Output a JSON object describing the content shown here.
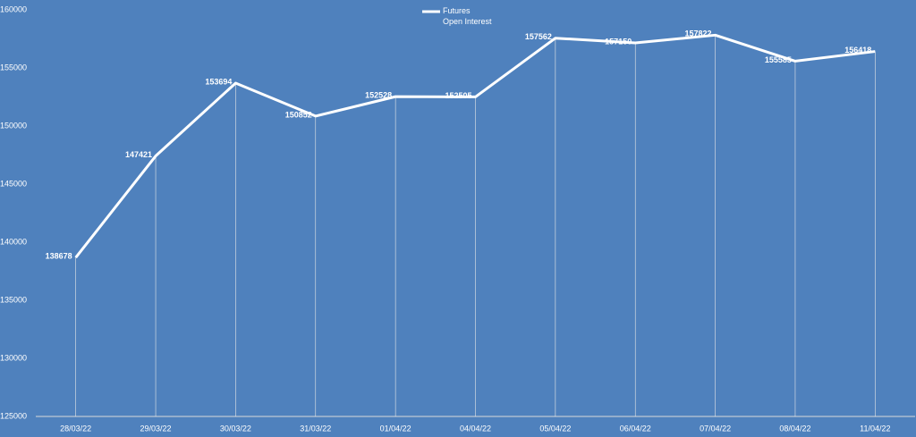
{
  "chart_data": {
    "type": "line",
    "categories": [
      "28/03/22",
      "29/03/22",
      "30/03/22",
      "31/03/22",
      "01/04/22",
      "04/04/22",
      "05/04/22",
      "06/04/22",
      "07/04/22",
      "08/04/22",
      "11/04/22"
    ],
    "series": [
      {
        "name": "Futures Open Interest",
        "color": "#ffffff",
        "values": [
          138678,
          147421,
          153694,
          150852,
          152528,
          152505,
          157562,
          157150,
          157822,
          155585,
          156418
        ]
      }
    ],
    "ylim": [
      125000,
      160000
    ],
    "yticks": [
      125000,
      130000,
      135000,
      140000,
      145000,
      150000,
      155000,
      160000
    ],
    "drop_lines": true,
    "data_labels": true,
    "legend": "top"
  }
}
